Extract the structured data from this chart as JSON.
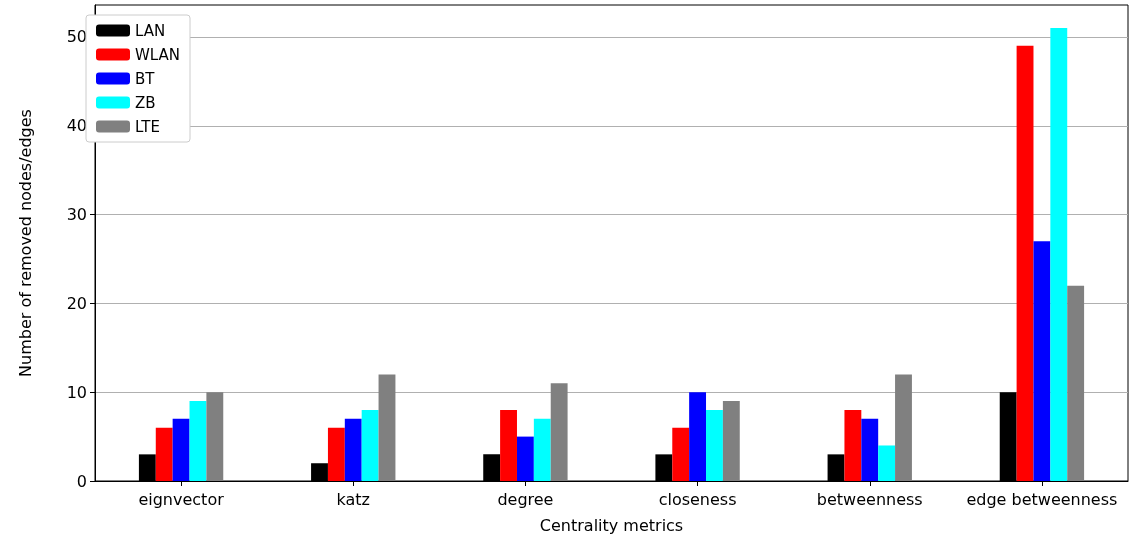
{
  "chart_data": {
    "type": "bar",
    "xlabel": "Centrality metrics",
    "ylabel": "Number of removed nodes/edges",
    "categories": [
      "eignvector",
      "katz",
      "degree",
      "closeness",
      "betweenness",
      "edge betweenness"
    ],
    "series": [
      {
        "name": "LAN",
        "color": "#000000",
        "values": [
          3,
          2,
          3,
          3,
          3,
          10
        ]
      },
      {
        "name": "WLAN",
        "color": "#ff0000",
        "values": [
          6,
          6,
          8,
          6,
          8,
          49
        ]
      },
      {
        "name": "BT",
        "color": "#0000ff",
        "values": [
          7,
          7,
          5,
          10,
          7,
          27
        ]
      },
      {
        "name": "ZB",
        "color": "#00ffff",
        "values": [
          9,
          8,
          7,
          8,
          4,
          51
        ]
      },
      {
        "name": "LTE",
        "color": "#808080",
        "values": [
          10,
          12,
          11,
          9,
          12,
          22
        ]
      }
    ],
    "ylim": [
      0,
      53.6
    ],
    "yticks": [
      0,
      10,
      20,
      30,
      40,
      50
    ],
    "grid": "y",
    "legend": "top left"
  }
}
